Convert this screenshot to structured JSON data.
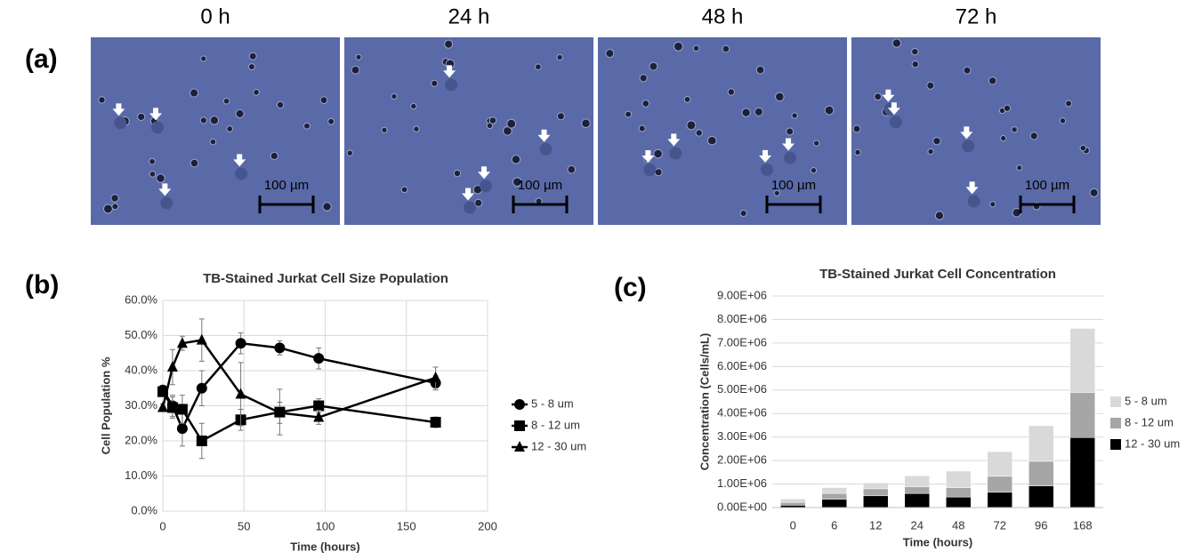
{
  "figure": {
    "panel_labels": [
      "(a)",
      "(b)",
      "(c)"
    ],
    "images": {
      "titles": [
        "0 h",
        "24 h",
        "48 h",
        "72 h"
      ],
      "scale_bar": "100 µm"
    }
  },
  "chart_data": [
    {
      "type": "line",
      "title": "TB-Stained Jurkat Cell Size Population",
      "x_label": "Time (hours)",
      "y_label": "Cell Population %",
      "x": [
        0,
        6,
        12,
        24,
        48,
        72,
        96,
        168
      ],
      "series": [
        {
          "name": "5 - 8 um",
          "color": "#000000",
          "marker": "circle",
          "values": [
            34.5,
            30,
            23.5,
            35,
            47.8,
            46.5,
            43.5,
            36.5
          ],
          "errors": [
            1,
            3,
            5,
            5,
            3,
            2,
            3,
            2
          ]
        },
        {
          "name": "8 - 12 um",
          "color": "#000000",
          "marker": "square",
          "values": [
            34,
            29.5,
            29,
            20,
            26,
            28.2,
            30,
            25.3
          ],
          "errors": [
            1,
            3,
            4,
            5,
            3,
            6.5,
            2,
            1.5
          ]
        },
        {
          "name": "12 - 30 um",
          "color": "#000000",
          "marker": "triangle",
          "values": [
            29.5,
            41,
            47.8,
            48.7,
            33.3,
            28,
            26.7,
            38
          ],
          "errors": [
            1,
            5,
            2,
            6,
            9,
            3,
            2,
            3
          ]
        }
      ],
      "xlim": [
        0,
        200
      ],
      "xticks": [
        0,
        50,
        100,
        150,
        200
      ],
      "ylim": [
        0,
        60
      ],
      "yticks": [
        {
          "value": 0,
          "label": "0.0%"
        },
        {
          "value": 10,
          "label": "10.0%"
        },
        {
          "value": 20,
          "label": "20.0%"
        },
        {
          "value": 30,
          "label": "30.0%"
        },
        {
          "value": 40,
          "label": "40.0%"
        },
        {
          "value": 50,
          "label": "50.0%"
        },
        {
          "value": 60,
          "label": "60.0%"
        }
      ],
      "grid": true,
      "legend": "right"
    },
    {
      "type": "stacked-bar",
      "title": "TB-Stained Jurkat Cell Concentration",
      "x_label": "Time (hours)",
      "y_label": "Concentration (Cells/mL)",
      "categories": [
        "0",
        "6",
        "12",
        "24",
        "48",
        "72",
        "96",
        "168"
      ],
      "series": [
        {
          "name": "5 - 8 um",
          "color": "#d9d9d9",
          "values": [
            150000,
            250000,
            250000,
            470000,
            700000,
            1050000,
            1510000,
            2720000
          ]
        },
        {
          "name": "8 - 12 um",
          "color": "#a6a6a6",
          "values": [
            120000,
            250000,
            300000,
            280000,
            400000,
            680000,
            1050000,
            1920000
          ]
        },
        {
          "name": "12 - 30 um",
          "color": "#000000",
          "values": [
            100000,
            350000,
            500000,
            600000,
            450000,
            650000,
            920000,
            2980000
          ]
        }
      ],
      "ylim": [
        0,
        9000000
      ],
      "yticks": [
        {
          "value": 0,
          "label": "0.00E+00"
        },
        {
          "value": 1000000,
          "label": "1.00E+06"
        },
        {
          "value": 2000000,
          "label": "2.00E+06"
        },
        {
          "value": 3000000,
          "label": "3.00E+06"
        },
        {
          "value": 4000000,
          "label": "4.00E+06"
        },
        {
          "value": 5000000,
          "label": "5.00E+06"
        },
        {
          "value": 6000000,
          "label": "6.00E+06"
        },
        {
          "value": 7000000,
          "label": "7.00E+06"
        },
        {
          "value": 8000000,
          "label": "8.00E+06"
        },
        {
          "value": 9000000,
          "label": "9.00E+06"
        }
      ],
      "grid": true,
      "legend": "right"
    }
  ]
}
